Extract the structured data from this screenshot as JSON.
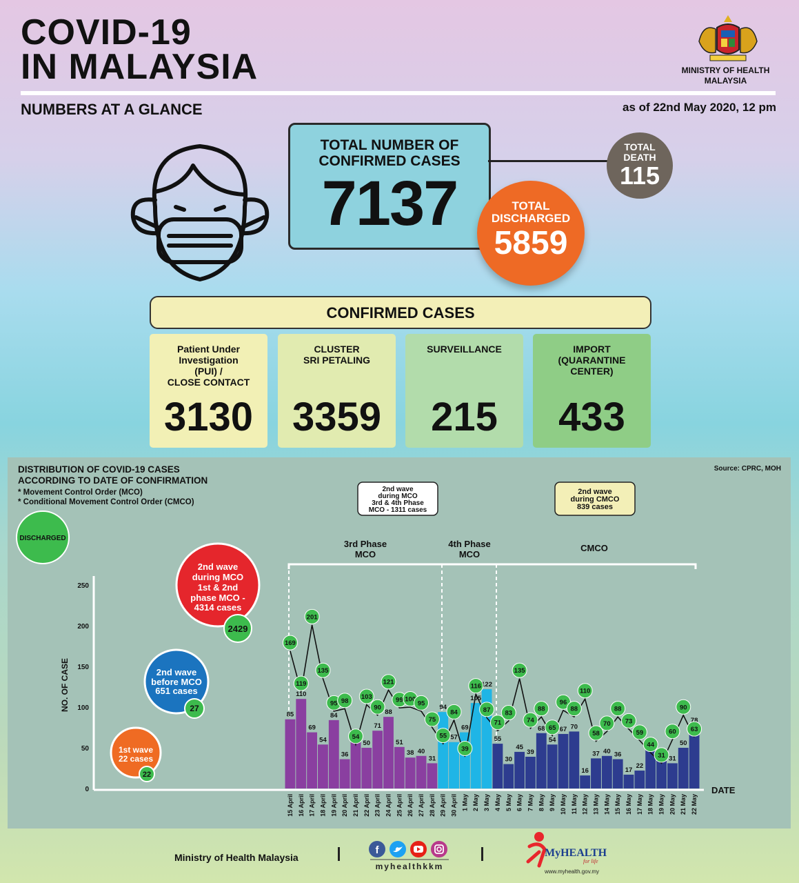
{
  "header": {
    "title_line1": "COVID-19",
    "title_line2": "IN MALAYSIA",
    "subtitle": "NUMBERS AT A GLANCE",
    "as_of": "as of 22nd May 2020, 12 pm",
    "ministry": "MINISTRY OF HEALTH\nMALAYSIA"
  },
  "summary": {
    "total_label": "TOTAL NUMBER OF\nCONFIRMED CASES",
    "total_value": "7137",
    "death_label": "TOTAL\nDEATH",
    "death_value": "115",
    "discharged_label": "TOTAL\nDISCHARGED",
    "discharged_value": "5859"
  },
  "confirmed": {
    "header": "CONFIRMED CASES",
    "cards": [
      {
        "label": "Patient Under\nInvestigation\n(PUI) /\nCLOSE CONTACT",
        "value": "3130",
        "color": "#f2f0b5"
      },
      {
        "label": "CLUSTER\nSRI PETALING",
        "value": "3359",
        "color": "#e1ebb0"
      },
      {
        "label": "SURVEILLANCE",
        "value": "215",
        "color": "#b2dcab"
      },
      {
        "label": "IMPORT\n(QUARANTINE\nCENTER)",
        "value": "433",
        "color": "#8fcd86"
      }
    ]
  },
  "chart_texts": {
    "title": "DISTRIBUTION OF COVID-19 CASES\nACCORDING TO DATE OF CONFIRMATION",
    "note1": "* Movement Control Order (MCO)",
    "note2": "* Conditional Movement Control Order (CMCO)",
    "source": "Source: CPRC, MOH",
    "callout_mco": "2nd wave\nduring MCO\n3rd & 4th Phase\nMCO - 1311 cases",
    "callout_cmco": "2nd wave\nduring CMCO\n839 cases",
    "discharged_legend": "DISCHARGED",
    "phase3": "3rd Phase\nMCO",
    "phase4": "4th Phase\nMCO",
    "cmco": "CMCO",
    "wave_red": "2nd wave\nduring MCO\n1st & 2nd\nphase MCO -\n4314 cases",
    "wave_red_discharged": "2429",
    "wave_blue": "2nd wave\nbefore MCO\n651 cases",
    "wave_blue_discharged": "27",
    "wave_orange": "1st wave\n22 cases",
    "wave_orange_discharged": "22"
  },
  "chart_data": {
    "type": "bar",
    "title": "DISTRIBUTION OF COVID-19 CASES ACCORDING TO DATE OF CONFIRMATION",
    "xlabel": "DATE",
    "ylabel": "NO. OF CASE",
    "ylim": [
      0,
      250
    ],
    "yticks": [
      0,
      50,
      100,
      150,
      200,
      250
    ],
    "grid": false,
    "categories": [
      "15 April",
      "16 April",
      "17 April",
      "18 April",
      "19 April",
      "20 April",
      "21 April",
      "22 April",
      "23 April",
      "24 April",
      "25 April",
      "26 April",
      "27 April",
      "28 April",
      "29 April",
      "30 April",
      "1 May",
      "2 May",
      "3 May",
      "4 May",
      "5 May",
      "6 May",
      "7 May",
      "8 May",
      "9 May",
      "10 May",
      "11 May",
      "12 May",
      "13 May",
      "14 May",
      "15 May",
      "16 May",
      "17 May",
      "18 May",
      "19 May",
      "20 May",
      "21 May",
      "22 May"
    ],
    "series": [
      {
        "type": "bar",
        "values": [
          85,
          110,
          69,
          54,
          84,
          36,
          57,
          50,
          71,
          88,
          51,
          38,
          40,
          31,
          94,
          57,
          69,
          105,
          122,
          55,
          30,
          45,
          39,
          68,
          54,
          67,
          70,
          16,
          37,
          40,
          36,
          17,
          22,
          47,
          37,
          31,
          50,
          78
        ]
      },
      {
        "name": "DISCHARGED",
        "type": "line",
        "values": [
          169,
          119,
          201,
          135,
          95,
          98,
          54,
          103,
          90,
          121,
          99,
          100,
          95,
          75,
          55,
          84,
          39,
          116,
          87,
          71,
          83,
          135,
          74,
          88,
          65,
          96,
          88,
          110,
          58,
          70,
          88,
          73,
          59,
          44,
          31,
          60,
          90,
          63
        ]
      }
    ],
    "bar_colors": [
      "#8a3fa0",
      "#8a3fa0",
      "#8a3fa0",
      "#8a3fa0",
      "#8a3fa0",
      "#8a3fa0",
      "#8a3fa0",
      "#8a3fa0",
      "#8a3fa0",
      "#8a3fa0",
      "#8a3fa0",
      "#8a3fa0",
      "#8a3fa0",
      "#8a3fa0",
      "#1fb5e6",
      "#1fb5e6",
      "#1fb5e6",
      "#1fb5e6",
      "#1fb5e6",
      "#2d3c8f",
      "#2d3c8f",
      "#2d3c8f",
      "#2d3c8f",
      "#2d3c8f",
      "#2d3c8f",
      "#2d3c8f",
      "#2d3c8f",
      "#2d3c8f",
      "#2d3c8f",
      "#2d3c8f",
      "#2d3c8f",
      "#2d3c8f",
      "#2d3c8f",
      "#2d3c8f",
      "#2d3c8f",
      "#2d3c8f",
      "#2d3c8f",
      "#2d3c8f"
    ],
    "discharged_marker_color": "#3dbb4d"
  },
  "footer": {
    "ministry": "Ministry of Health Malaysia",
    "handle": "myhealthkkm",
    "brand": "MyHEALTH",
    "brand_tag": "for life",
    "url": "www.myhealth.gov.my"
  }
}
